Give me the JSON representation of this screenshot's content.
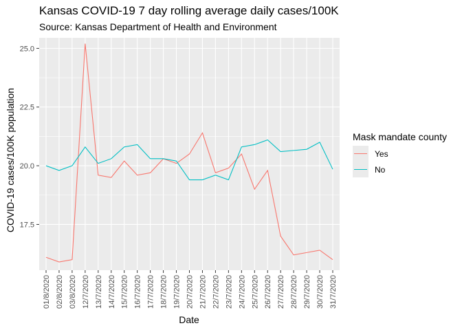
{
  "chart_data": {
    "type": "line",
    "title": "Kansas COVID-19 7 day rolling average daily cases/100K",
    "subtitle": "Source: Kansas Department of Health and Environment",
    "xlabel": "Date",
    "ylabel": "COVID-19 cases/100K population",
    "categories": [
      "01/8/2020",
      "02/8/2020",
      "03/8/2020",
      "12/7/2020",
      "13/7/2020",
      "14/7/2020",
      "15/7/2020",
      "16/7/2020",
      "17/7/2020",
      "18/7/2020",
      "19/7/2020",
      "20/7/2020",
      "21/7/2020",
      "22/7/2020",
      "23/7/2020",
      "24/7/2020",
      "25/7/2020",
      "26/7/2020",
      "27/7/2020",
      "28/7/2020",
      "29/7/2020",
      "30/7/2020",
      "31/7/2020"
    ],
    "ylim": [
      15.55,
      25.45
    ],
    "yticks": [
      17.5,
      20.0,
      22.5,
      25.0
    ],
    "ytick_labels": [
      "17.5",
      "20.0",
      "22.5",
      "25.0"
    ],
    "grid": true,
    "legend": {
      "title": "Mask mandate county",
      "position": "right"
    },
    "series": [
      {
        "name": "Yes",
        "color": "#F8766D",
        "values": [
          16.1,
          15.9,
          16.0,
          25.2,
          19.6,
          19.5,
          20.2,
          19.6,
          19.7,
          20.3,
          20.1,
          20.5,
          21.4,
          19.7,
          19.9,
          20.5,
          19.0,
          19.8,
          17.0,
          16.2,
          16.3,
          16.4,
          16.0
        ]
      },
      {
        "name": "No",
        "color": "#00BFC4",
        "values": [
          20.0,
          19.8,
          20.0,
          20.8,
          20.1,
          20.3,
          20.8,
          20.9,
          20.3,
          20.3,
          20.2,
          19.4,
          19.4,
          19.6,
          19.4,
          20.8,
          20.9,
          21.1,
          20.6,
          20.65,
          20.7,
          21.0,
          19.85
        ]
      }
    ],
    "panel_color": "#EBEBEB"
  }
}
